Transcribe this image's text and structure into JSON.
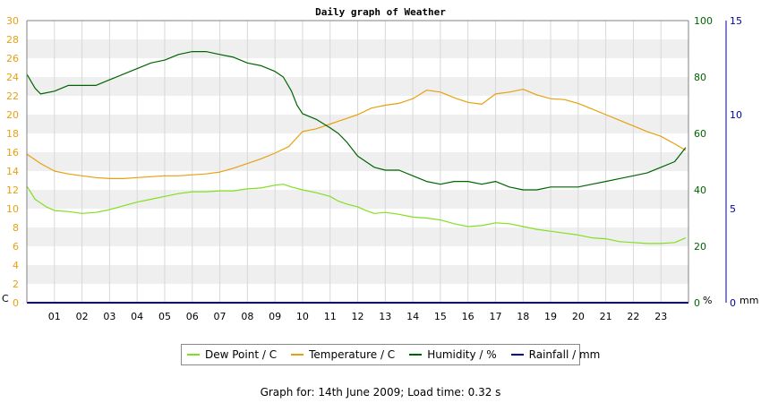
{
  "chart_data": {
    "type": "line",
    "title": "Daily graph of Weather",
    "x_tick_labels": [
      "01",
      "02",
      "03",
      "04",
      "05",
      "06",
      "07",
      "08",
      "09",
      "10",
      "11",
      "12",
      "13",
      "14",
      "15",
      "16",
      "17",
      "18",
      "19",
      "20",
      "21",
      "22",
      "23"
    ],
    "xlim": [
      0,
      24
    ],
    "y_axes": {
      "temperature": {
        "unit_label": "C",
        "ylim": [
          0,
          30
        ],
        "ticks": [
          0,
          2,
          4,
          6,
          8,
          10,
          12,
          14,
          16,
          18,
          20,
          22,
          24,
          26,
          28,
          30
        ],
        "color": "#e8a010"
      },
      "humidity": {
        "unit_label": "%",
        "ylim": [
          0,
          100
        ],
        "ticks": [
          0,
          20,
          40,
          60,
          80,
          100
        ],
        "color": "#006400"
      },
      "rainfall": {
        "unit_label": "mm",
        "ylim": [
          0,
          15
        ],
        "ticks": [
          0,
          5,
          10,
          15
        ],
        "color": "#000099"
      }
    },
    "grid": true,
    "legend_position": "bottom",
    "series": [
      {
        "name": "Dew Point / C",
        "axis": "temperature",
        "color": "#80e020",
        "x": [
          0,
          0.3,
          0.7,
          1,
          1.5,
          2,
          2.5,
          3,
          3.5,
          4,
          4.5,
          5,
          5.5,
          6,
          6.5,
          7,
          7.5,
          8,
          8.5,
          9,
          9.3,
          9.6,
          10,
          10.5,
          11,
          11.3,
          11.6,
          12,
          12.3,
          12.6,
          13,
          13.5,
          14,
          14.5,
          15,
          15.5,
          16,
          16.5,
          17,
          17.5,
          18,
          18.5,
          19,
          19.5,
          20,
          20.5,
          21,
          21.5,
          22,
          22.5,
          23,
          23.5,
          23.9
        ],
        "values": [
          12.4,
          11,
          10.2,
          9.8,
          9.7,
          9.5,
          9.6,
          9.9,
          10.3,
          10.7,
          11,
          11.3,
          11.6,
          11.8,
          11.8,
          11.9,
          11.9,
          12.1,
          12.2,
          12.5,
          12.6,
          12.3,
          12,
          11.7,
          11.3,
          10.8,
          10.5,
          10.2,
          9.8,
          9.5,
          9.6,
          9.4,
          9.1,
          9,
          8.8,
          8.4,
          8.1,
          8.2,
          8.5,
          8.4,
          8.1,
          7.8,
          7.6,
          7.4,
          7.2,
          6.9,
          6.8,
          6.5,
          6.4,
          6.3,
          6.3,
          6.4,
          6.9
        ]
      },
      {
        "name": "Temperature / C",
        "axis": "temperature",
        "color": "#e8a010",
        "x": [
          0,
          0.5,
          1,
          1.5,
          2,
          2.5,
          3,
          3.5,
          4,
          4.5,
          5,
          5.5,
          6,
          6.5,
          7,
          7.5,
          8,
          8.5,
          9,
          9.5,
          10,
          10.5,
          11,
          11.5,
          12,
          12.5,
          13,
          13.5,
          14,
          14.5,
          15,
          15.5,
          16,
          16.5,
          17,
          17.5,
          18,
          18.5,
          19,
          19.5,
          20,
          20.5,
          21,
          21.5,
          22,
          22.5,
          23,
          23.5,
          23.9
        ],
        "values": [
          15.8,
          14.8,
          14,
          13.7,
          13.5,
          13.3,
          13.2,
          13.2,
          13.3,
          13.4,
          13.5,
          13.5,
          13.6,
          13.7,
          13.9,
          14.3,
          14.8,
          15.3,
          15.9,
          16.6,
          18.2,
          18.5,
          19,
          19.5,
          20,
          20.7,
          21,
          21.2,
          21.7,
          22.6,
          22.4,
          21.8,
          21.3,
          21.1,
          22.2,
          22.4,
          22.7,
          22.1,
          21.7,
          21.6,
          21.2,
          20.6,
          20,
          19.4,
          18.8,
          18.2,
          17.7,
          16.9,
          16.2
        ]
      },
      {
        "name": "Humidity / %",
        "axis": "humidity",
        "color": "#006400",
        "x": [
          0,
          0.3,
          0.5,
          1,
          1.5,
          2,
          2.5,
          3,
          3.5,
          4,
          4.5,
          5,
          5.5,
          6,
          6.5,
          7,
          7.5,
          8,
          8.5,
          9,
          9.3,
          9.6,
          9.8,
          10,
          10.5,
          11,
          11.3,
          11.6,
          12,
          12.3,
          12.6,
          13,
          13.5,
          14,
          14.5,
          15,
          15.5,
          16,
          16.5,
          17,
          17.5,
          18,
          18.5,
          19,
          19.5,
          20,
          20.5,
          21,
          21.5,
          22,
          22.5,
          23,
          23.5,
          23.9
        ],
        "values": [
          81,
          76,
          74,
          75,
          77,
          77,
          77,
          79,
          81,
          83,
          85,
          86,
          88,
          89,
          89,
          88,
          87,
          85,
          84,
          82,
          80,
          75,
          70,
          67,
          65,
          62,
          60,
          57,
          52,
          50,
          48,
          47,
          47,
          45,
          43,
          42,
          43,
          43,
          42,
          43,
          41,
          40,
          40,
          41,
          41,
          41,
          42,
          43,
          44,
          45,
          46,
          48,
          50,
          55
        ]
      },
      {
        "name": "Rainfall / mm",
        "axis": "rainfall",
        "color": "#000099",
        "x": [
          0,
          24
        ],
        "values": [
          0,
          0
        ]
      }
    ]
  },
  "footer": {
    "text": "Graph for: 14th June 2009; Load time: 0.32 s"
  }
}
